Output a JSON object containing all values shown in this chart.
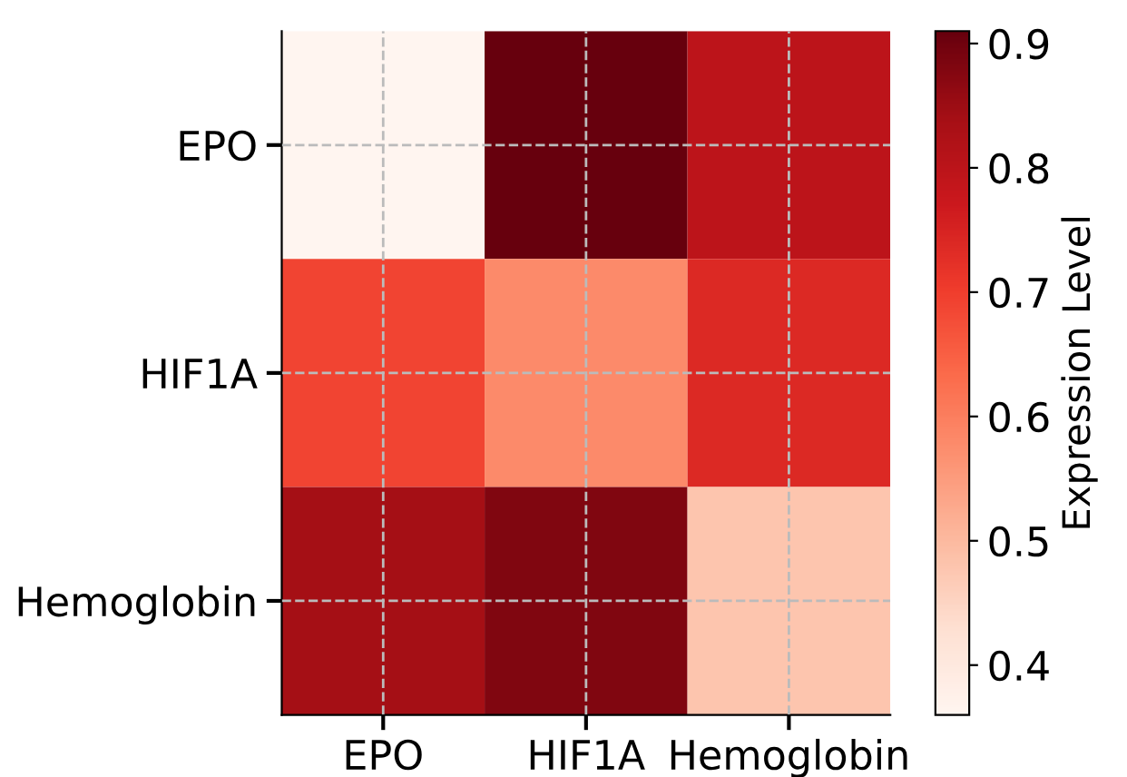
{
  "chart_data": {
    "type": "heatmap",
    "categories": [
      "EPO",
      "HIF1A",
      "Hemoglobin"
    ],
    "y_categories": [
      "EPO",
      "HIF1A",
      "Hemoglobin"
    ],
    "cells": [
      [
        0.36,
        0.91,
        0.8
      ],
      [
        0.69,
        0.58,
        0.74
      ],
      [
        0.84,
        0.88,
        0.48
      ]
    ],
    "clim": [
      0.36,
      0.91
    ],
    "cticks": [
      0.4,
      0.5,
      0.6,
      0.7,
      0.8,
      0.9
    ],
    "clabel": "Expression Level",
    "grid": true
  }
}
